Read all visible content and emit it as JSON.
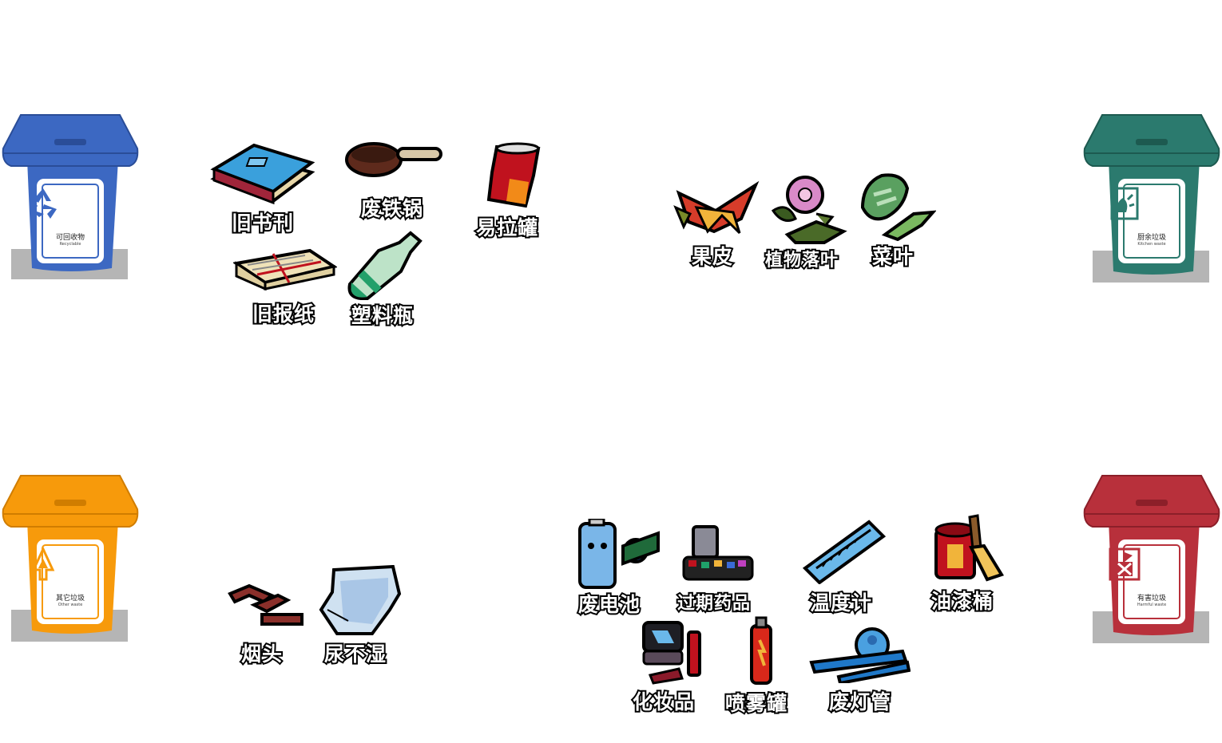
{
  "bins": {
    "recyclable": {
      "label_cn": "可回收物",
      "label_en": "Recyclable",
      "color": "#3c68c2",
      "symbol": "recycle-icon"
    },
    "kitchen": {
      "label_cn": "厨余垃圾",
      "label_en": "Kitchen waste",
      "color": "#2b7a6e",
      "symbol": "food-waste-icon"
    },
    "other": {
      "label_cn": "其它垃圾",
      "label_en": "Other waste",
      "color": "#f79a0b",
      "symbol": "other-waste-icon"
    },
    "harmful": {
      "label_cn": "有害垃圾",
      "label_en": "Harmful waste",
      "color": "#b8303b",
      "symbol": "harmful-icon"
    }
  },
  "items": {
    "old_books": "旧书刊",
    "iron_pot": "废铁锅",
    "can": "易拉罐",
    "newspaper": "旧报纸",
    "plastic_bottle": "塑料瓶",
    "fruit_peel": "果皮",
    "leaves": "植物落叶",
    "veg_leaves": "菜叶",
    "cigarette": "烟头",
    "diaper": "尿不湿",
    "battery": "废电池",
    "medicine": "过期药品",
    "thermometer": "温度计",
    "paint_bucket": "油漆桶",
    "cosmetics": "化妆品",
    "spray_can": "喷雾罐",
    "lamp_tube": "废灯管"
  }
}
